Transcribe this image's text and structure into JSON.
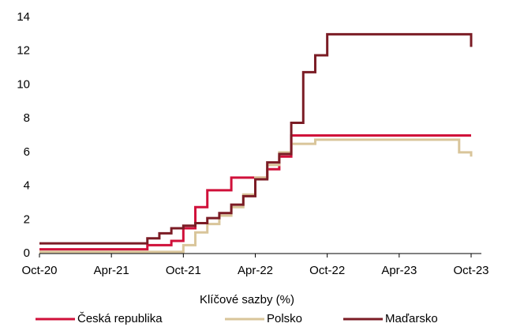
{
  "chart_data": {
    "type": "line",
    "step": true,
    "x_label": "Klíčové sazby (%)",
    "x": [
      "2020-10",
      "2020-11",
      "2020-12",
      "2021-01",
      "2021-02",
      "2021-03",
      "2021-04",
      "2021-05",
      "2021-06",
      "2021-07",
      "2021-08",
      "2021-09",
      "2021-10",
      "2021-11",
      "2021-12",
      "2022-01",
      "2022-02",
      "2022-03",
      "2022-04",
      "2022-05",
      "2022-06",
      "2022-07",
      "2022-08",
      "2022-09",
      "2022-10",
      "2022-11",
      "2022-12",
      "2023-01",
      "2023-02",
      "2023-03",
      "2023-04",
      "2023-05",
      "2023-06",
      "2023-07",
      "2023-08",
      "2023-09",
      "2023-10"
    ],
    "series": [
      {
        "name": "Česká republika",
        "color": "#d0103a",
        "values": [
          0.25,
          0.25,
          0.25,
          0.25,
          0.25,
          0.25,
          0.25,
          0.25,
          0.25,
          0.5,
          0.5,
          0.75,
          1.5,
          2.75,
          3.75,
          3.75,
          4.5,
          4.5,
          4.5,
          5.0,
          5.75,
          7,
          7,
          7,
          7,
          7,
          7,
          7,
          7,
          7,
          7,
          7,
          7,
          7,
          7,
          7,
          7
        ]
      },
      {
        "name": "Polsko",
        "color": "#d9c59a",
        "values": [
          0.1,
          0.1,
          0.1,
          0.1,
          0.1,
          0.1,
          0.1,
          0.1,
          0.1,
          0.1,
          0.1,
          0.1,
          0.5,
          1.25,
          1.75,
          2.25,
          2.75,
          3.5,
          4.5,
          5.25,
          6.0,
          6.5,
          6.5,
          6.75,
          6.75,
          6.75,
          6.75,
          6.75,
          6.75,
          6.75,
          6.75,
          6.75,
          6.75,
          6.75,
          6.75,
          6.0,
          5.75
        ]
      },
      {
        "name": "Maďarsko",
        "color": "#7b1c25",
        "values": [
          0.6,
          0.6,
          0.6,
          0.6,
          0.6,
          0.6,
          0.6,
          0.6,
          0.6,
          0.9,
          1.2,
          1.5,
          1.65,
          1.8,
          2.1,
          2.4,
          2.9,
          3.4,
          4.4,
          5.4,
          5.9,
          7.75,
          10.75,
          11.75,
          13,
          13,
          13,
          13,
          13,
          13,
          13,
          13,
          13,
          13,
          13,
          13,
          12.25
        ]
      }
    ],
    "xlim": [
      "2020-10",
      "2023-10"
    ],
    "xticks": [
      {
        "value": "2020-10",
        "label": "Oct-20"
      },
      {
        "value": "2021-04",
        "label": "Apr-21"
      },
      {
        "value": "2021-10",
        "label": "Oct-21"
      },
      {
        "value": "2022-04",
        "label": "Apr-22"
      },
      {
        "value": "2022-10",
        "label": "Oct-22"
      },
      {
        "value": "2023-04",
        "label": "Apr-23"
      },
      {
        "value": "2023-10",
        "label": "Oct-23"
      }
    ],
    "ylim": [
      0,
      14
    ],
    "yticks": [
      0,
      2,
      4,
      6,
      8,
      10,
      12,
      14
    ],
    "grid": false,
    "legend": "bottom"
  }
}
